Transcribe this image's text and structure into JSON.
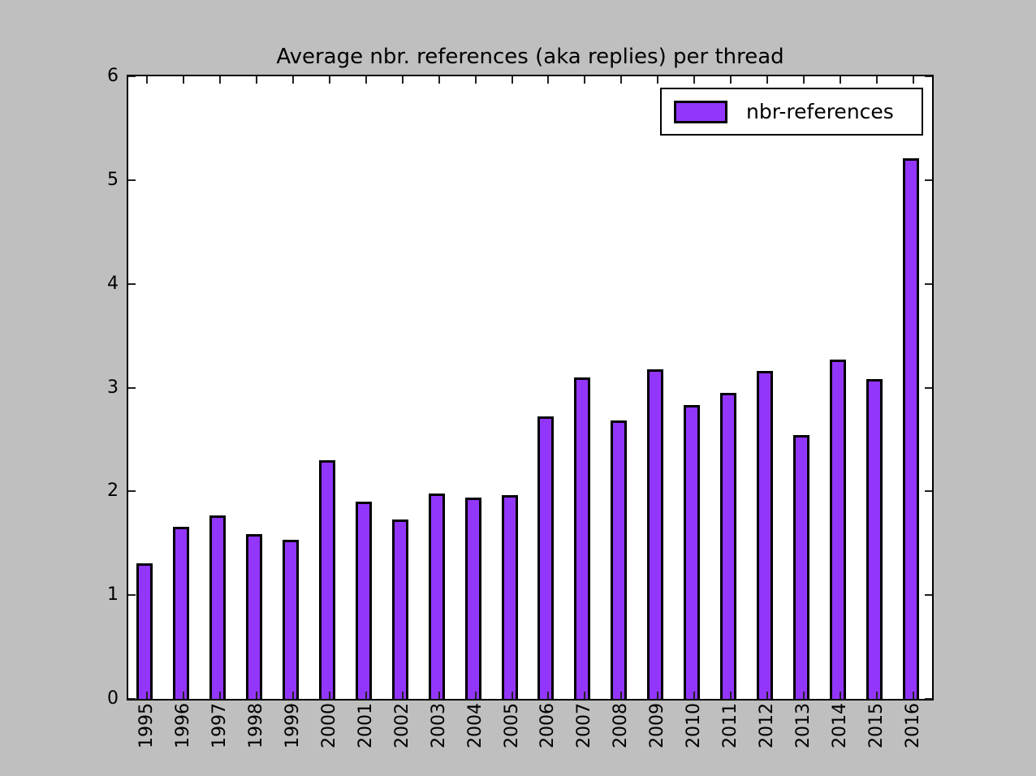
{
  "chart_data": {
    "type": "bar",
    "title": "Average nbr. references (aka replies) per thread",
    "categories": [
      "1995",
      "1996",
      "1997",
      "1998",
      "1999",
      "2000",
      "2001",
      "2002",
      "2003",
      "2004",
      "2005",
      "2006",
      "2007",
      "2008",
      "2009",
      "2010",
      "2011",
      "2012",
      "2013",
      "2014",
      "2015",
      "2016"
    ],
    "values": [
      1.31,
      1.66,
      1.77,
      1.59,
      1.53,
      2.3,
      1.9,
      1.73,
      1.98,
      1.94,
      1.96,
      2.72,
      3.1,
      2.68,
      3.18,
      2.83,
      2.95,
      3.16,
      2.54,
      3.27,
      3.08,
      5.21
    ],
    "series_name": "nbr-references",
    "xlabel": "",
    "ylabel": "",
    "ylim": [
      0,
      6
    ],
    "yticks": [
      0,
      1,
      2,
      3,
      4,
      5,
      6
    ],
    "grid": false,
    "tick_direction": "in",
    "legend": {
      "label": "nbr-references",
      "position": "upper-right"
    },
    "colors": {
      "bar_fill": "#9336fc",
      "bar_edge": "#000000",
      "figure_background": "#bfbfbf",
      "plot_background": "#ffffff",
      "text": "#000000"
    }
  }
}
